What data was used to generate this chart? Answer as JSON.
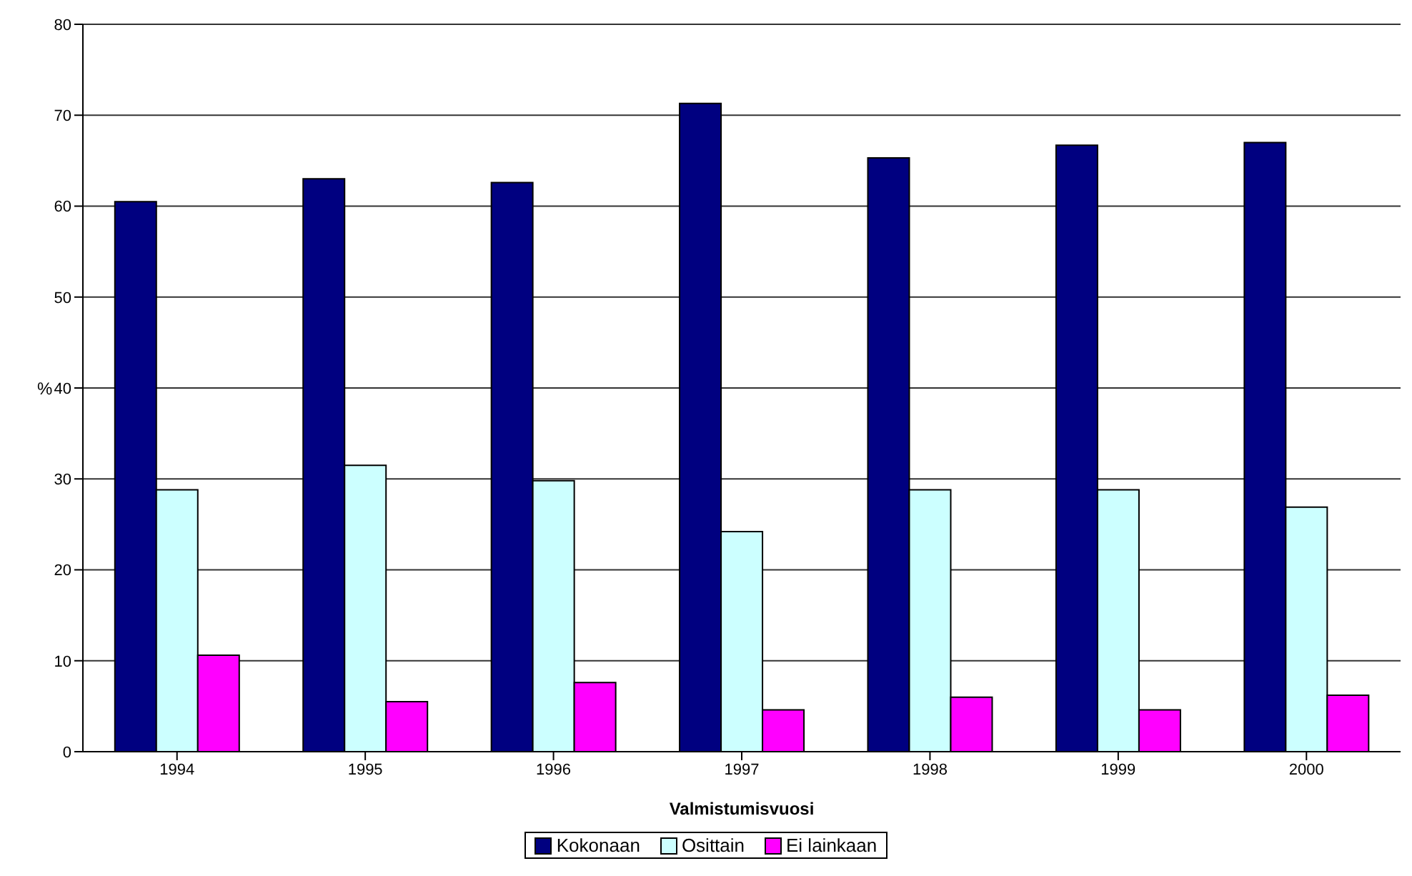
{
  "chart_data": {
    "type": "bar",
    "xlabel": "Valmistumisvuosi",
    "ylabel": "%",
    "categories": [
      "1994",
      "1995",
      "1996",
      "1997",
      "1998",
      "1999",
      "2000"
    ],
    "series": [
      {
        "name": "Kokonaan",
        "color": "#000080",
        "values": [
          60.5,
          63.0,
          62.6,
          71.3,
          65.3,
          66.7,
          67.0
        ]
      },
      {
        "name": "Osittain",
        "color": "#ccffff",
        "values": [
          28.8,
          31.5,
          29.8,
          24.2,
          28.8,
          28.8,
          26.9
        ]
      },
      {
        "name": "Ei lainkaan",
        "color": "#ff00ff",
        "values": [
          10.6,
          5.5,
          7.6,
          4.6,
          6.0,
          4.6,
          6.2
        ]
      }
    ],
    "ylim": [
      0,
      80
    ],
    "yticks": [
      0,
      10,
      20,
      30,
      40,
      50,
      60,
      70,
      80
    ],
    "grid": "y",
    "legend": "bottom"
  }
}
